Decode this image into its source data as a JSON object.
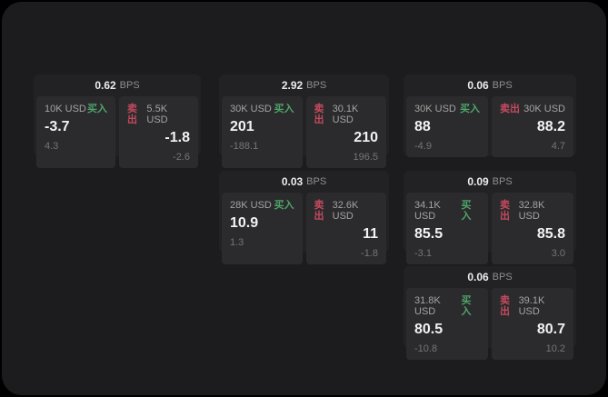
{
  "labels": {
    "unit": "BPS",
    "buy": "买入",
    "sell": "卖出"
  },
  "colors": {
    "background": "#000000",
    "panel_background": "#1c1c1e",
    "card_background": "#222224",
    "side_panel_background": "#2b2b2d",
    "buy_green": "#4fa469",
    "sell_red": "#c44a5f",
    "value_white": "#f2f2f2",
    "muted_gray": "#757575"
  },
  "cards": [
    {
      "bps": "0.62",
      "buy": {
        "amount": "10K USD",
        "value": "-3.7",
        "sub": "4.3"
      },
      "sell": {
        "amount": "5.5K USD",
        "value": "-1.8",
        "sub": "-2.6"
      }
    },
    {
      "bps": "2.92",
      "buy": {
        "amount": "30K USD",
        "value": "201",
        "sub": "-188.1"
      },
      "sell": {
        "amount": "30.1K USD",
        "value": "210",
        "sub": "196.5"
      }
    },
    {
      "bps": "0.06",
      "buy": {
        "amount": "30K USD",
        "value": "88",
        "sub": "-4.9"
      },
      "sell": {
        "amount": "30K USD",
        "value": "88.2",
        "sub": "4.7"
      }
    },
    {
      "bps": "0.03",
      "buy": {
        "amount": "28K USD",
        "value": "10.9",
        "sub": "1.3"
      },
      "sell": {
        "amount": "32.6K USD",
        "value": "11",
        "sub": "-1.8"
      }
    },
    {
      "bps": "0.09",
      "buy": {
        "amount": "34.1K USD",
        "value": "85.5",
        "sub": "-3.1"
      },
      "sell": {
        "amount": "32.8K USD",
        "value": "85.8",
        "sub": "3.0"
      }
    },
    {
      "bps": "0.06",
      "buy": {
        "amount": "31.8K USD",
        "value": "80.5",
        "sub": "-10.8"
      },
      "sell": {
        "amount": "39.1K USD",
        "value": "80.7",
        "sub": "10.2"
      }
    }
  ]
}
